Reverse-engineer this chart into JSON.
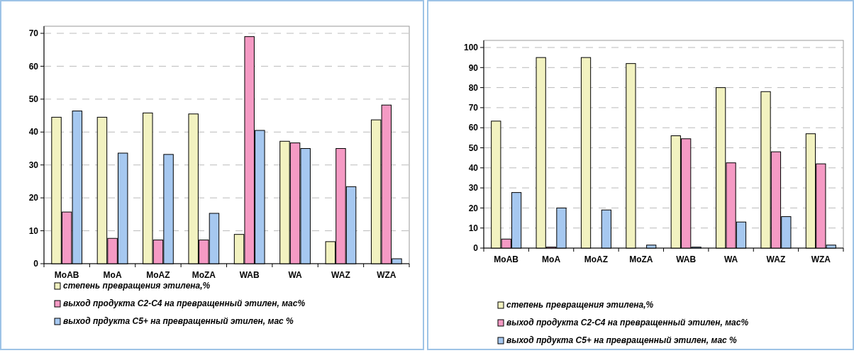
{
  "chart_data": [
    {
      "type": "bar",
      "categories": [
        "MoAB",
        "MoA",
        "MoAZ",
        "MoZA",
        "WAB",
        "WA",
        "WAZ",
        "WZA"
      ],
      "ylim": [
        0,
        70
      ],
      "yticks": [
        0,
        10,
        20,
        30,
        40,
        50,
        60,
        70
      ],
      "grid": "y",
      "legend": "bottom",
      "series": [
        {
          "name": "степень превращения этилена,%",
          "color": "#f2f2c0",
          "values": [
            44.5,
            44.5,
            45.8,
            45.5,
            8.9,
            37.2,
            6.7,
            43.7
          ]
        },
        {
          "name": "выход продукта С2-С4 на превращенный этилен, мас%",
          "color": "#f59ac4",
          "values": [
            15.7,
            7.7,
            7.2,
            7.2,
            69,
            36.7,
            35,
            48.2
          ]
        },
        {
          "name": "выход прдукта С5+ на превращенный этилен, мас %",
          "color": "#a6c8f0",
          "values": [
            46.4,
            33.6,
            33.2,
            15.3,
            40.5,
            35,
            23.4,
            1.5
          ]
        }
      ]
    },
    {
      "type": "bar",
      "categories": [
        "MoAB",
        "MoA",
        "MoAZ",
        "MoZA",
        "WAB",
        "WA",
        "WAZ",
        "WZA"
      ],
      "ylim": [
        0,
        100
      ],
      "yticks": [
        0,
        10,
        20,
        30,
        40,
        50,
        60,
        70,
        80,
        90,
        100
      ],
      "grid": "y",
      "legend": "bottom",
      "series": [
        {
          "name": "степень превращения этилена,%",
          "color": "#f2f2c0",
          "values": [
            63.3,
            95,
            95,
            92,
            56,
            80,
            78,
            57
          ]
        },
        {
          "name": "выход продукта С2-С4 на превращенный этилен, мас%",
          "color": "#f59ac4",
          "values": [
            4.5,
            0.5,
            0,
            0,
            54.5,
            42.5,
            48,
            42
          ]
        },
        {
          "name": "выход прдукта С5+ на превращенный этилен, мас %",
          "color": "#a6c8f0",
          "values": [
            27.7,
            20,
            19,
            1.5,
            0.5,
            13,
            15.7,
            1.5
          ]
        }
      ]
    }
  ]
}
